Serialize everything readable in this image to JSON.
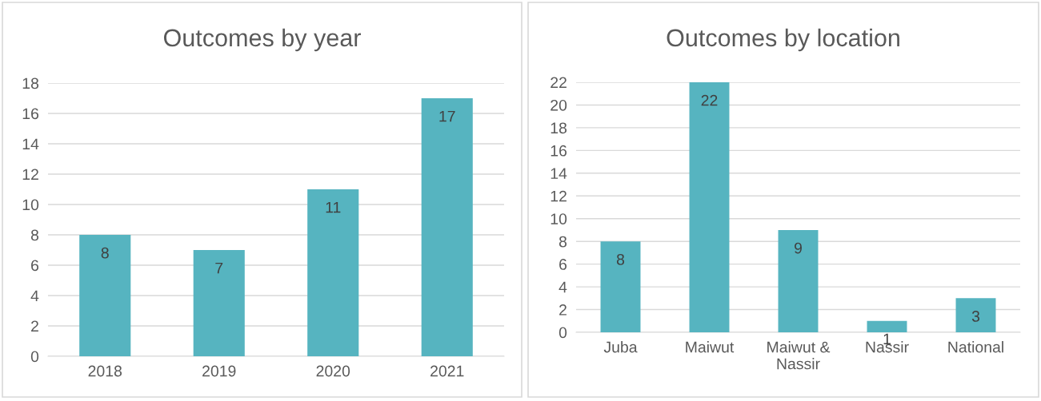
{
  "chart_data": [
    {
      "type": "bar",
      "title": "Outcomes by year",
      "categories": [
        "2018",
        "2019",
        "2020",
        "2021"
      ],
      "values": [
        8,
        7,
        11,
        17
      ],
      "color": "#56b4c0",
      "ylim": [
        0,
        18
      ],
      "yticks": [
        0,
        2,
        4,
        6,
        8,
        10,
        12,
        14,
        16,
        18
      ],
      "grid": "y",
      "data_labels": true
    },
    {
      "type": "bar",
      "title": "Outcomes by location",
      "categories": [
        "Juba",
        "Maiwut",
        "Maiwut &\nNassir",
        "Nassir",
        "National"
      ],
      "values": [
        8,
        22,
        9,
        1,
        3
      ],
      "color": "#56b4c0",
      "ylim": [
        0,
        22
      ],
      "yticks": [
        0,
        2,
        4,
        6,
        8,
        10,
        12,
        14,
        16,
        18,
        20,
        22
      ],
      "grid": "y",
      "data_labels": true
    }
  ]
}
